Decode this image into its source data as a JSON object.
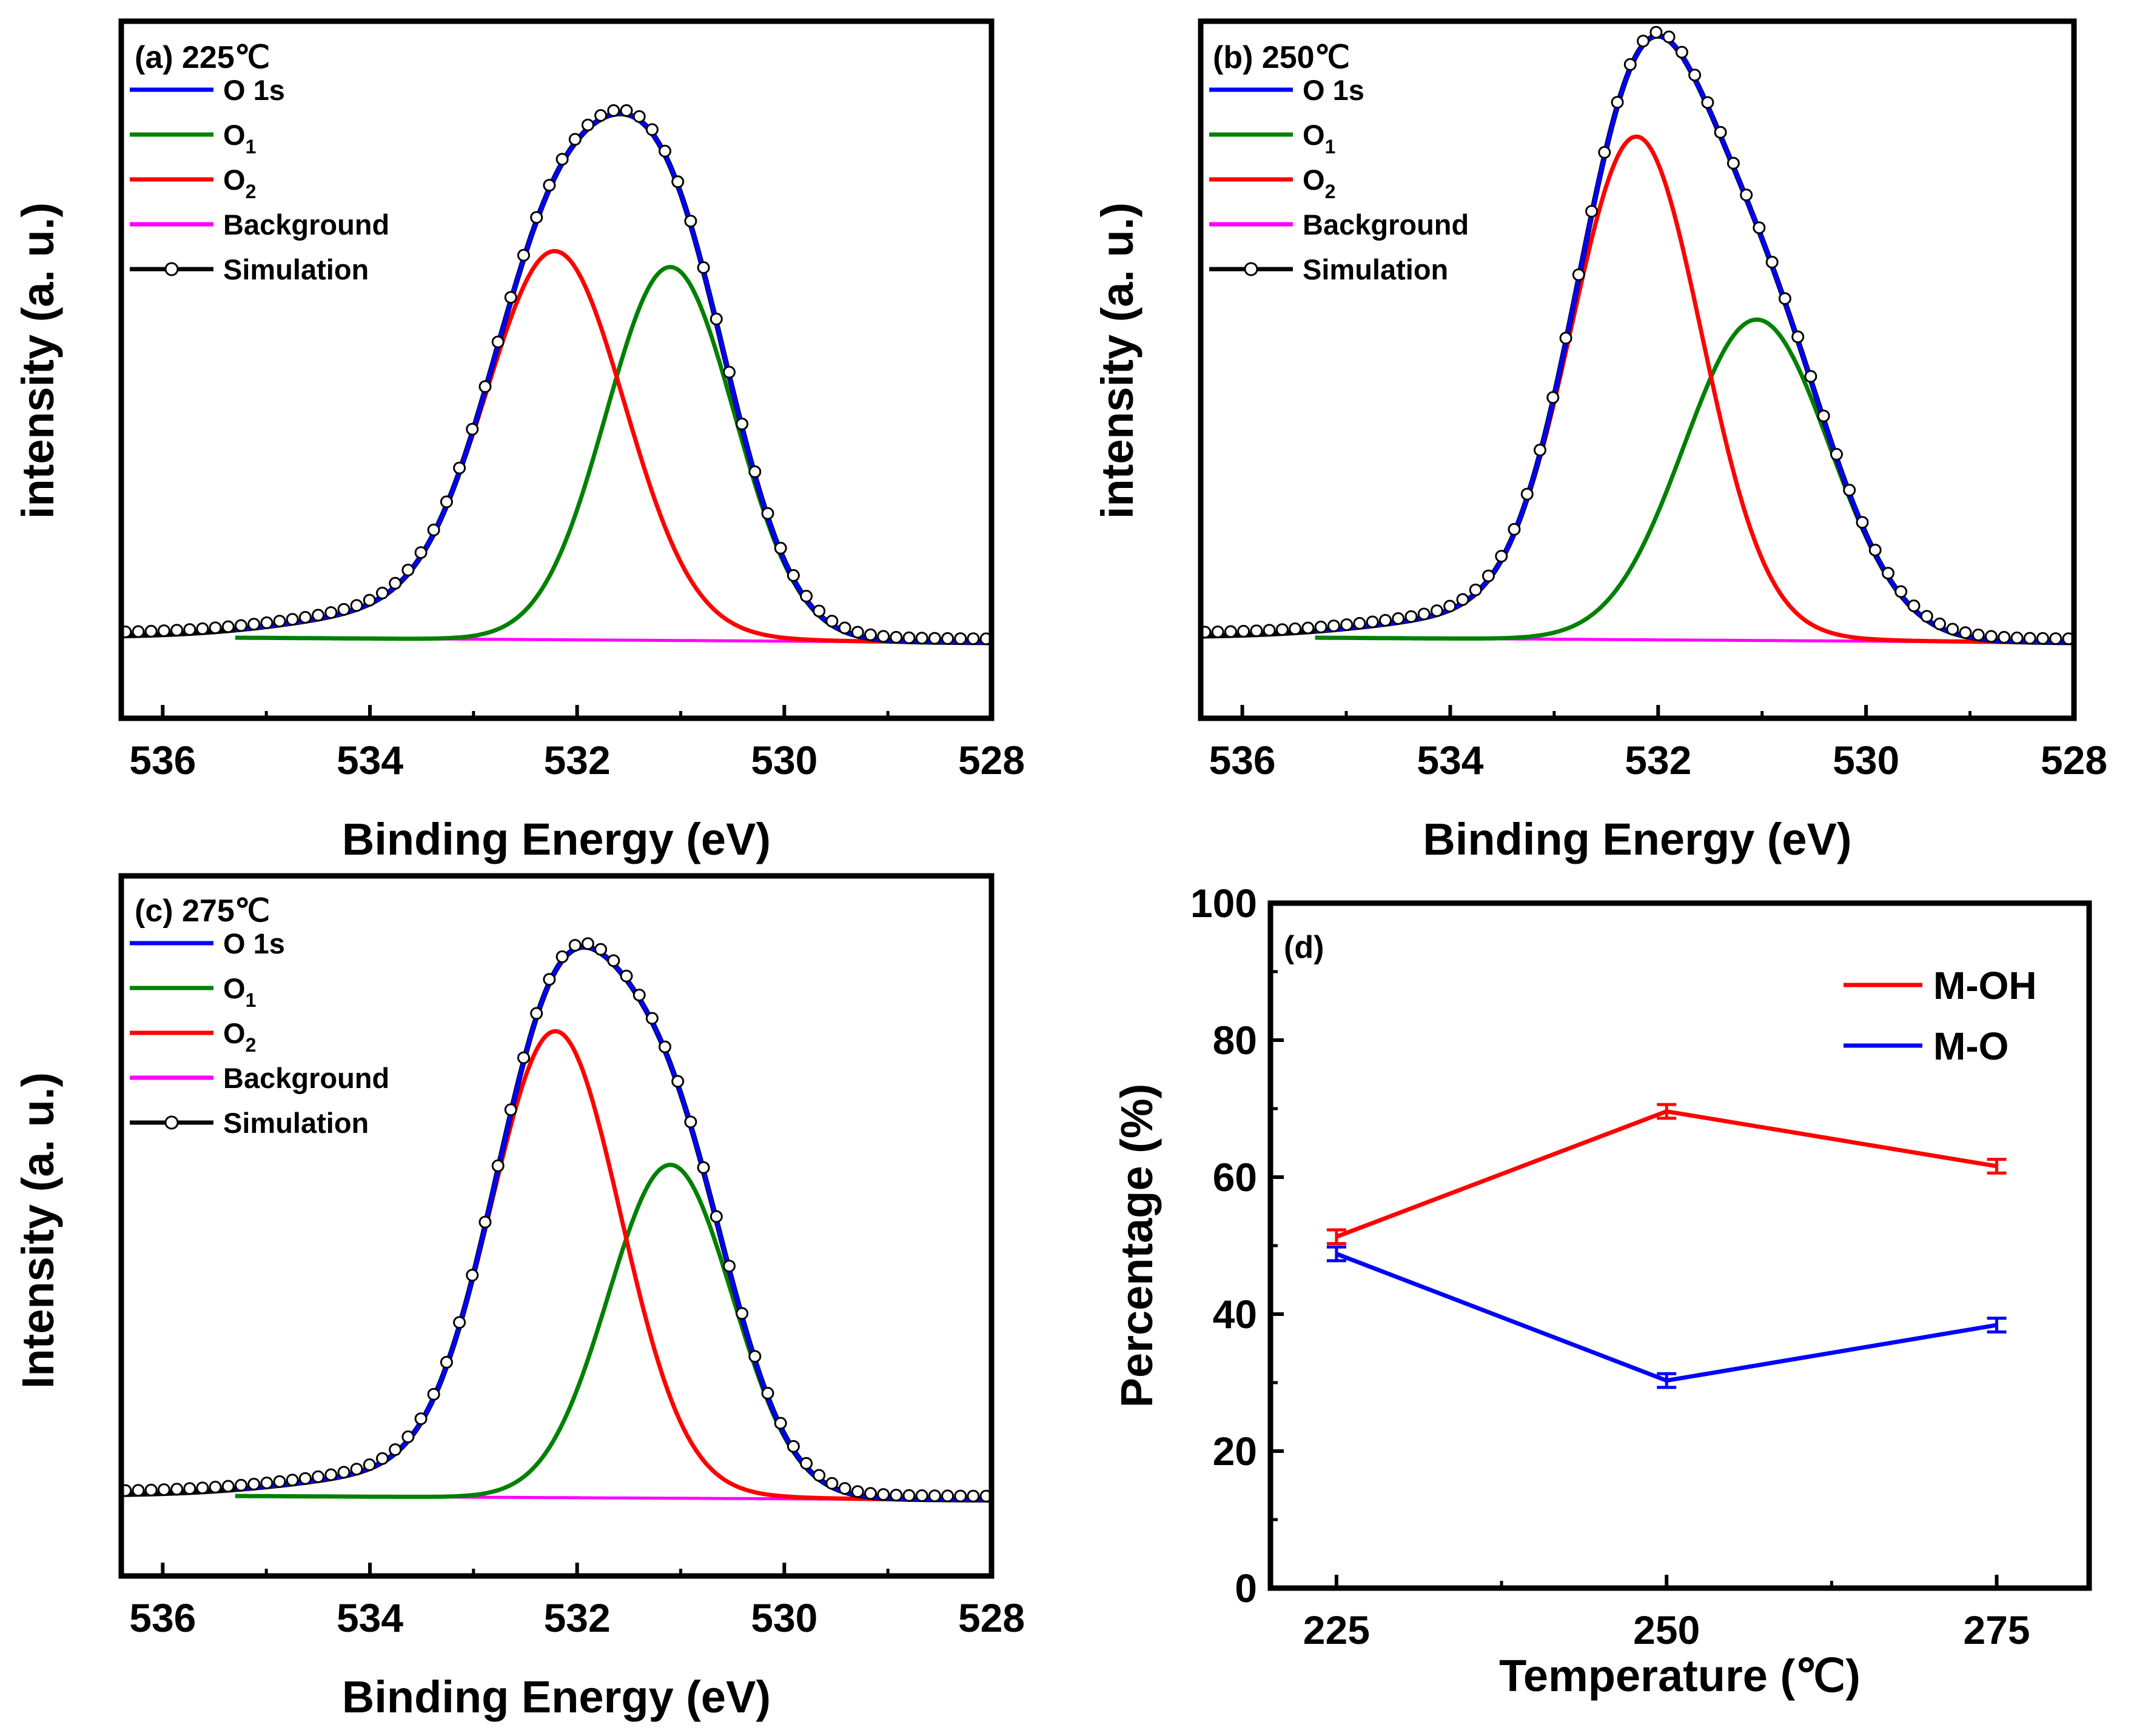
{
  "chart_data": [
    {
      "id": "a",
      "type": "line",
      "title": "(a) 225℃",
      "xlabel": "Binding Energy (eV)",
      "ylabel": "intensity (a. u.)",
      "xlim": [
        536.4,
        528.0
      ],
      "x_ticks": [
        536,
        534,
        532,
        530,
        528
      ],
      "ylim": [
        -0.14,
        1.12
      ],
      "legend": [
        {
          "name": "O 1s",
          "color": "#0000ff"
        },
        {
          "name": "O",
          "sub": "1",
          "color": "#008000"
        },
        {
          "name": "O",
          "sub": "2",
          "color": "#ff0000"
        },
        {
          "name": "Background",
          "color": "#ff00ff"
        },
        {
          "name": "Simulation",
          "color": "#000000",
          "marker": "circle"
        }
      ],
      "components": {
        "O1": {
          "center": 531.1,
          "height": 0.675,
          "width": 0.62
        },
        "O2": {
          "center": 532.2,
          "height": 0.655,
          "width": 0.66
        },
        "O2_tail": {
          "center": 533.1,
          "height": 0.06,
          "width": 1.3
        },
        "background": {
          "start": 0.007,
          "end": -0.003
        }
      }
    },
    {
      "id": "b",
      "type": "line",
      "title": "(b) 250℃",
      "xlabel": "Binding Energy (eV)",
      "ylabel": "intensity (a. u.)",
      "xlim": [
        536.4,
        528.0
      ],
      "x_ticks": [
        536,
        534,
        532,
        530,
        528
      ],
      "ylim": [
        -0.14,
        1.12
      ],
      "legend": [
        {
          "name": "O 1s",
          "color": "#0000ff"
        },
        {
          "name": "O",
          "sub": "1",
          "color": "#008000"
        },
        {
          "name": "O",
          "sub": "2",
          "color": "#ff0000"
        },
        {
          "name": "Background",
          "color": "#ff00ff"
        },
        {
          "name": "Simulation",
          "color": "#000000",
          "marker": "circle"
        }
      ],
      "components": {
        "O1": {
          "center": 531.05,
          "height": 0.58,
          "width": 0.7
        },
        "O2": {
          "center": 532.2,
          "height": 0.87,
          "width": 0.62
        },
        "O2_tail": {
          "center": 533.1,
          "height": 0.05,
          "width": 1.3
        },
        "background": {
          "start": 0.007,
          "end": -0.003
        }
      }
    },
    {
      "id": "c",
      "type": "line",
      "title": "(c) 275℃",
      "xlabel": "Binding Energy (eV)",
      "ylabel": "Intensity (a. u.)",
      "xlim": [
        536.4,
        528.0
      ],
      "x_ticks": [
        536,
        534,
        532,
        530,
        528
      ],
      "ylim": [
        -0.14,
        1.12
      ],
      "legend": [
        {
          "name": "O 1s",
          "color": "#0000ff"
        },
        {
          "name": "O",
          "sub": "1",
          "color": "#008000"
        },
        {
          "name": "O",
          "sub": "2",
          "color": "#ff0000"
        },
        {
          "name": "Background",
          "color": "#ff00ff"
        },
        {
          "name": "Simulation",
          "color": "#000000",
          "marker": "circle"
        }
      ],
      "components": {
        "O1": {
          "center": 531.1,
          "height": 0.6,
          "width": 0.6
        },
        "O2": {
          "center": 532.2,
          "height": 0.8,
          "width": 0.62
        },
        "O2_tail": {
          "center": 533.1,
          "height": 0.05,
          "width": 1.3
        },
        "background": {
          "start": 0.005,
          "end": -0.003
        }
      }
    },
    {
      "id": "d",
      "type": "line",
      "title": "(d)",
      "xlabel": "Temperature (℃)",
      "ylabel": "Percentage (%)",
      "categories": [
        "225",
        "250",
        "275"
      ],
      "x": [
        225,
        250,
        275
      ],
      "xlim": [
        220,
        282
      ],
      "ylim": [
        0,
        100
      ],
      "y_ticks": [
        0,
        20,
        40,
        60,
        80,
        100
      ],
      "legend_position": "top-right",
      "series": [
        {
          "name": "M-OH",
          "color": "#ff0000",
          "values": [
            51.3,
            69.6,
            61.6
          ],
          "errors": [
            1.0,
            1.0,
            1.0
          ]
        },
        {
          "name": "M-O",
          "color": "#0000ff",
          "values": [
            48.8,
            30.3,
            38.4
          ],
          "errors": [
            1.0,
            1.0,
            1.0
          ]
        }
      ]
    }
  ]
}
